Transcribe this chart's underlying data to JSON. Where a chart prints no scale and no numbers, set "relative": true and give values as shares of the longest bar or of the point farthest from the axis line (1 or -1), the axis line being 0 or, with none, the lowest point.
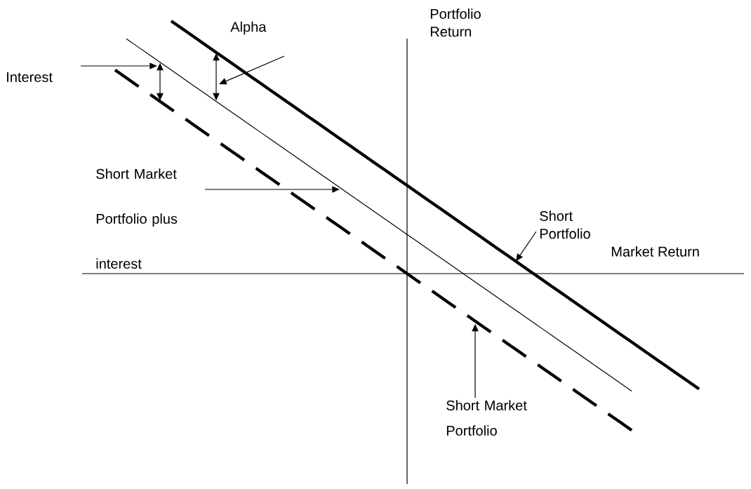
{
  "chart_data": {
    "type": "line",
    "relative": true,
    "xlabel": "Market Return",
    "ylabel": "Portfolio Return",
    "marker": "none",
    "categories": [
      null,
      null,
      null,
      null,
      null,
      null,
      null,
      null,
      null,
      null,
      null,
      null,
      null,
      null,
      null,
      null,
      null,
      null,
      null,
      null,
      null,
      null,
      null,
      null,
      null,
      null,
      null,
      null,
      null,
      null,
      null,
      null,
      null,
      null,
      null,
      null,
      null,
      null,
      null,
      null,
      null,
      null,
      null,
      null,
      null,
      null,
      null,
      null,
      null,
      null,
      null,
      null,
      null
    ],
    "series": [
      {
        "name": "Short Portfolio",
        "color": "#000000",
        "line_style": "solid",
        "values": [
          null,
          null,
          null,
          null,
          null,
          1.0,
          0.969,
          0.938,
          0.907,
          0.876,
          0.845,
          0.814,
          0.783,
          0.752,
          0.721,
          0.69,
          0.659,
          0.628,
          0.597,
          0.566,
          0.535,
          0.504,
          0.473,
          0.442,
          0.411,
          0.38,
          0.349,
          0.318,
          0.287,
          0.256,
          0.225,
          0.194,
          0.163,
          0.132,
          0.101,
          0.07,
          0.039,
          0.008,
          -0.023,
          -0.054,
          -0.085,
          -0.116,
          -0.147,
          -0.178,
          -0.209,
          -0.24,
          -0.271,
          -0.302,
          -0.333,
          -0.364,
          -0.395,
          -0.426,
          -0.457
        ]
      },
      {
        "name": "Short Market Portfolio plus interest",
        "color": "#000000",
        "line_style": "solid",
        "values": [
          null,
          0.93,
          0.899,
          0.868,
          0.837,
          0.806,
          0.775,
          0.744,
          0.713,
          0.682,
          0.651,
          0.62,
          0.589,
          0.558,
          0.527,
          0.496,
          0.465,
          0.434,
          0.403,
          0.372,
          0.341,
          0.31,
          0.279,
          0.248,
          0.217,
          0.186,
          0.155,
          0.124,
          0.093,
          0.062,
          0.031,
          0.0,
          -0.031,
          -0.062,
          -0.093,
          -0.124,
          -0.155,
          -0.186,
          -0.217,
          -0.248,
          -0.279,
          -0.31,
          -0.341,
          -0.372,
          -0.403,
          -0.434,
          -0.465,
          null,
          null,
          null,
          null,
          null,
          null
        ]
      },
      {
        "name": "Short Market Portfolio",
        "color": "#000000",
        "line_style": "dashed",
        "values": [
          0.806,
          0.775,
          0.744,
          0.713,
          0.682,
          0.651,
          0.62,
          0.589,
          0.558,
          0.527,
          0.496,
          0.465,
          0.434,
          0.403,
          0.372,
          0.341,
          0.31,
          0.279,
          0.248,
          0.217,
          0.186,
          0.155,
          0.124,
          0.093,
          0.062,
          0.031,
          0.0,
          -0.031,
          -0.062,
          -0.093,
          -0.124,
          -0.155,
          -0.186,
          -0.217,
          -0.248,
          -0.279,
          -0.31,
          -0.341,
          -0.372,
          -0.403,
          -0.434,
          -0.465,
          -0.496,
          -0.527,
          -0.558,
          -0.589,
          -0.62,
          null,
          null,
          null,
          null,
          null,
          null
        ]
      }
    ],
    "annotations": [
      "Alpha",
      "Interest"
    ]
  }
}
